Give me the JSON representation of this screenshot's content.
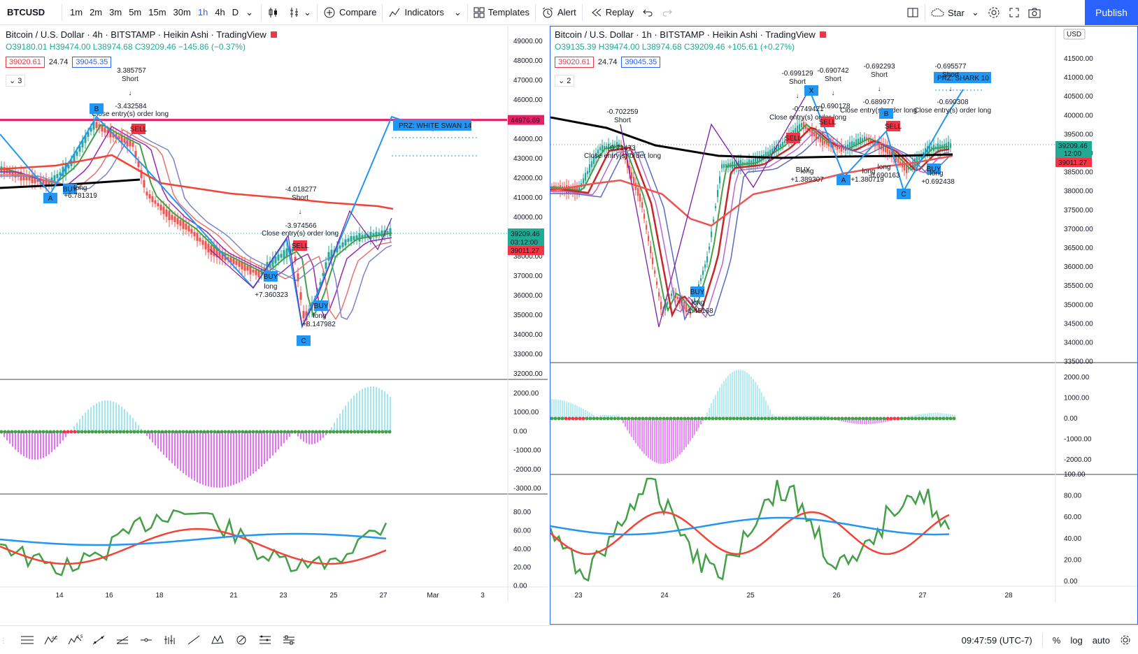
{
  "toolbar": {
    "symbol": "BTCUSD",
    "intervals": [
      "1m",
      "2m",
      "3m",
      "5m",
      "15m",
      "30m",
      "1h",
      "4h",
      "D"
    ],
    "active_interval": "1h",
    "compare": "Compare",
    "indicators": "Indicators",
    "templates": "Templates",
    "alert": "Alert",
    "replay": "Replay",
    "star": "Star",
    "publish": "Publish"
  },
  "left_chart": {
    "title": "Bitcoin / U.S. Dollar · 4h · BITSTAMP · Heikin Ashi · TradingView",
    "ohlc": "O39180.01 H39474.00 L38974.68 C39209.46 −145.86 (−0.37%)",
    "bid": "39020.61",
    "spread": "24.74",
    "ask": "39045.35",
    "collapse_count": "3",
    "price_labels": [
      "49000.00",
      "48000.00",
      "47000.00",
      "46000.00",
      "45000.00",
      "44000.00",
      "43000.00",
      "42000.00",
      "41000.00",
      "40000.00",
      "39000.00",
      "38000.00",
      "37000.00",
      "36000.00",
      "35000.00",
      "34000.00",
      "33000.00",
      "32000.00"
    ],
    "tag_top": "44976.69",
    "tag_price": "39209.46",
    "tag_time": "03:12:00",
    "tag_red": "39011.27",
    "osc_labels": [
      "2000.00",
      "1000.00",
      "0.00",
      "-1000.00",
      "-2000.00",
      "-3000.00"
    ],
    "stoch_labels": [
      "80.00",
      "60.00",
      "40.00",
      "20.00",
      "0.00"
    ],
    "x_labels": [
      "14",
      "16",
      "18",
      "21",
      "23",
      "25",
      "27",
      "Mar",
      "3"
    ],
    "prz_label": "PRZ: WHITE SWAN 14",
    "annotations": {
      "short1_val": "3.385757",
      "short1": "Short",
      "short1_b": "-3.432584",
      "close1": "Close entry(s) order long",
      "sell1": "SELL",
      "b_label": "B",
      "a_label": "A",
      "buy1": "BUY",
      "long1": "long",
      "long1_val": "+6.781319",
      "short2_val": "-4.018277",
      "short2": "Short",
      "short2_b": "-3.974566",
      "close2": "Close entry(s) order long",
      "sell2": "SELL",
      "buy2": "BUY",
      "long2": "long",
      "long2_val": "+7.360323",
      "buy3": "BUY",
      "long3": "long",
      "long3_val": "+8.147982",
      "c_label": "C"
    }
  },
  "right_chart": {
    "title": "Bitcoin / U.S. Dollar · 1h · BITSTAMP · Heikin Ashi · TradingView",
    "ohlc": "O39135.39 H39474.00 L38974.68 C39209.46 +105.61 (+0.27%)",
    "bid": "39020.61",
    "spread": "24.74",
    "ask": "39045.35",
    "collapse_count": "2",
    "currency": "USD",
    "price_labels": [
      "41500.00",
      "41000.00",
      "40500.00",
      "40000.00",
      "39500.00",
      "39000.00",
      "38500.00",
      "38000.00",
      "37500.00",
      "37000.00",
      "36500.00",
      "36000.00",
      "35500.00",
      "35000.00",
      "34500.00",
      "34000.00",
      "33500.00"
    ],
    "tag_price": "39209.46",
    "tag_time": "12:00",
    "tag_red": "39011.27",
    "osc_labels": [
      "2000.00",
      "1000.00",
      "0.00",
      "-1000.00",
      "-2000.00"
    ],
    "stoch_labels": [
      "100.00",
      "80.00",
      "60.00",
      "40.00",
      "20.00",
      "0.00"
    ],
    "x_labels": [
      "23",
      "24",
      "25",
      "26",
      "27",
      "28"
    ],
    "prz_label": "PRZ: SHARK 10",
    "annotations": {
      "s1_val": "-0.702259",
      "s1": "Short",
      "v1": "-0.71473",
      "c1": "Close entry(s) order long",
      "s2_val": "-0.699129",
      "s2": "Short",
      "s3_val": "-0.690742",
      "s3": "Short",
      "s4_val": "-0.692293",
      "s4": "Short",
      "s5_val": "-0.695577",
      "s5": "Short",
      "v2": "-0.749421",
      "v3": "-0.690178",
      "c2": "Close entry(s) order long",
      "v4": "-0.689977",
      "c3": "Close entry(s) order long",
      "v5": "-0.690308",
      "c4": "Close entry(s) order long",
      "sell_a": "SELL",
      "sell_b": "SELL",
      "sell_c": "SELL",
      "x_label": "X",
      "a_label": "A",
      "b_label": "B",
      "c_label": "C",
      "buy1": "BUY",
      "long1": "long",
      "long1_val": "-1.45168",
      "buy2": "BUY",
      "long2": "long",
      "long2_val": "+1.389307",
      "long3": "long",
      "long3_val": "+1.380719",
      "long4": "long",
      "long4_val": "-0.690163",
      "buy5": "BUY",
      "long5": "long",
      "long5_val": "+0.692438"
    }
  },
  "bottombar": {
    "clock": "09:47:59 (UTC-7)",
    "percent": "%",
    "log": "log",
    "auto": "auto"
  }
}
